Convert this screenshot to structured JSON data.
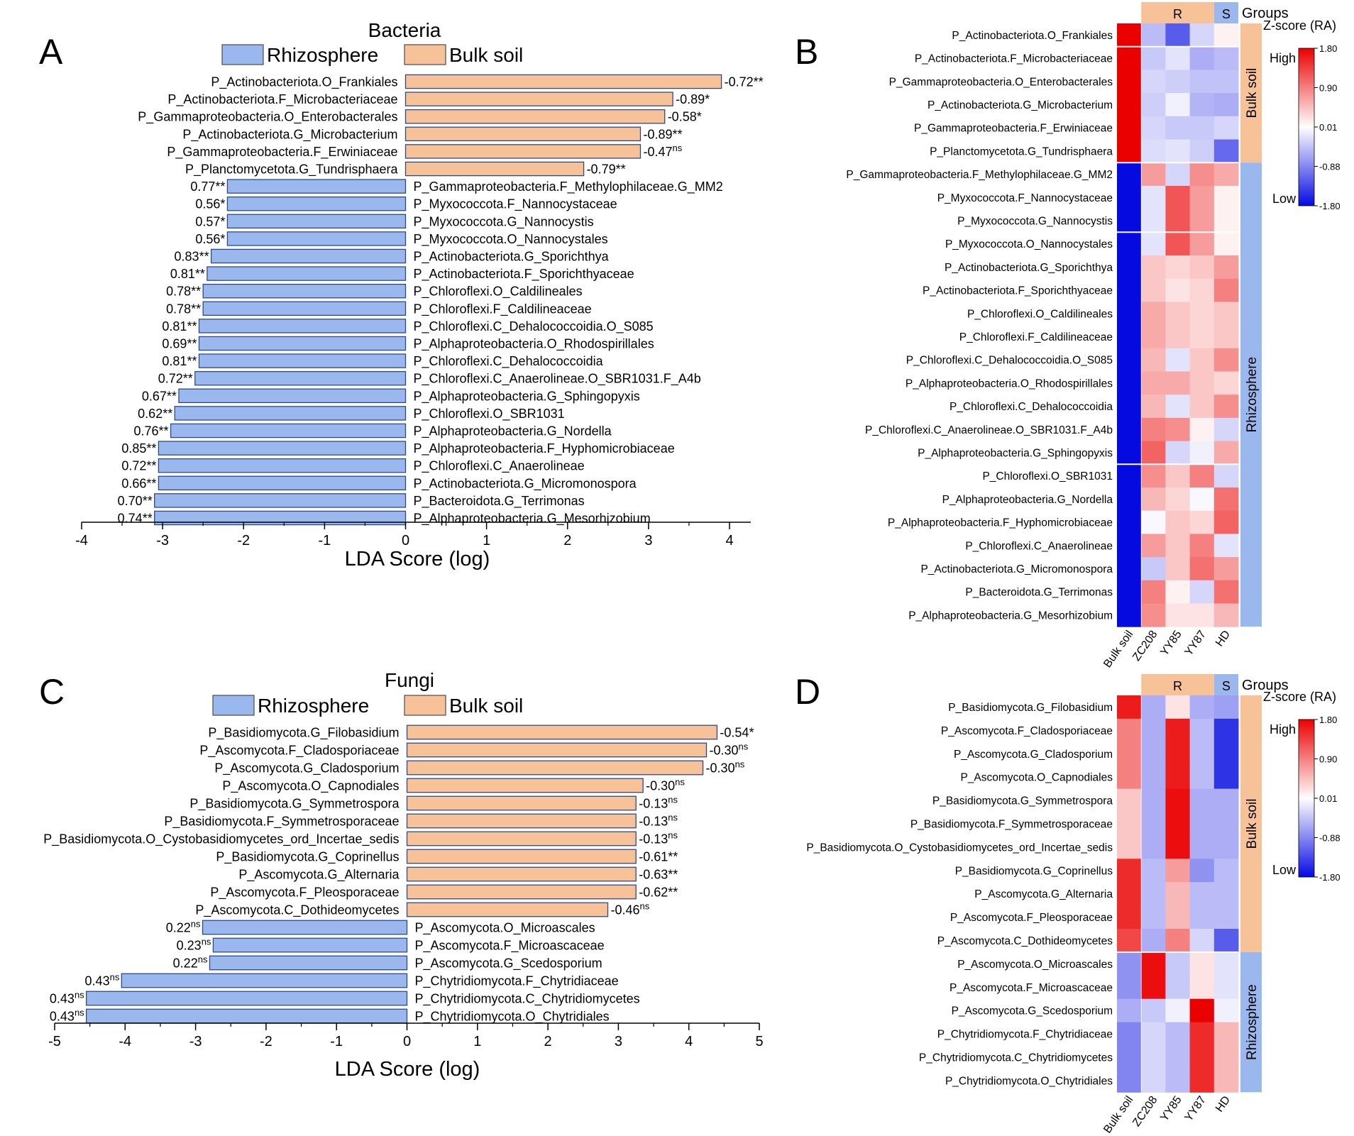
{
  "chart_data": [
    {
      "panel": "A",
      "type": "bar",
      "orientation": "horizontal",
      "title": "Bacteria",
      "xlabel": "LDA Score (log)",
      "xlim": [
        -4,
        4
      ],
      "xticks": [
        -4,
        -3,
        -2,
        -1,
        0,
        1,
        2,
        3,
        4
      ],
      "legend": [
        {
          "name": "Rhizosphere",
          "color": "#9bb8ee"
        },
        {
          "name": "Bulk soil",
          "color": "#f8c299"
        }
      ],
      "bars": [
        {
          "taxon": "P_Actinobacteriota.O_Frankiales",
          "value": 3.9,
          "group": "Bulk soil",
          "r": "-0.72",
          "sig": "**"
        },
        {
          "taxon": "P_Actinobacteriota.F_Microbacteriaceae",
          "value": 3.3,
          "group": "Bulk soil",
          "r": "-0.89",
          "sig": "*"
        },
        {
          "taxon": "P_Gammaproteobacteria.O_Enterobacterales",
          "value": 3.2,
          "group": "Bulk soil",
          "r": "-0.58",
          "sig": "*"
        },
        {
          "taxon": "P_Actinobacteriota.G_Microbacterium",
          "value": 2.9,
          "group": "Bulk soil",
          "r": "-0.89",
          "sig": "**"
        },
        {
          "taxon": "P_Gammaproteobacteria.F_Erwiniaceae",
          "value": 2.9,
          "group": "Bulk soil",
          "r": "-0.47",
          "sig": "ns"
        },
        {
          "taxon": "P_Planctomycetota.G_Tundrisphaera",
          "value": 2.2,
          "group": "Bulk soil",
          "r": "-0.79",
          "sig": "**"
        },
        {
          "taxon": "P_Gammaproteobacteria.F_Methylophilaceae.G_MM2",
          "value": -2.2,
          "group": "Rhizosphere",
          "r": "0.77",
          "sig": "**"
        },
        {
          "taxon": "P_Myxococcota.F_Nannocystaceae",
          "value": -2.2,
          "group": "Rhizosphere",
          "r": "0.56",
          "sig": "*"
        },
        {
          "taxon": "P_Myxococcota.G_Nannocystis",
          "value": -2.2,
          "group": "Rhizosphere",
          "r": "0.57",
          "sig": "*"
        },
        {
          "taxon": "P_Myxococcota.O_Nannocystales",
          "value": -2.2,
          "group": "Rhizosphere",
          "r": "0.56",
          "sig": "*"
        },
        {
          "taxon": "P_Actinobacteriota.G_Sporichthya",
          "value": -2.4,
          "group": "Rhizosphere",
          "r": "0.83",
          "sig": "**"
        },
        {
          "taxon": "P_Actinobacteriota.F_Sporichthyaceae",
          "value": -2.45,
          "group": "Rhizosphere",
          "r": "0.81",
          "sig": "**"
        },
        {
          "taxon": "P_Chloroflexi.O_Caldilineales",
          "value": -2.5,
          "group": "Rhizosphere",
          "r": "0.78",
          "sig": "**"
        },
        {
          "taxon": "P_Chloroflexi.F_Caldilineaceae",
          "value": -2.5,
          "group": "Rhizosphere",
          "r": "0.78",
          "sig": "**"
        },
        {
          "taxon": "P_Chloroflexi.C_Dehalococcoidia.O_S085",
          "value": -2.55,
          "group": "Rhizosphere",
          "r": "0.81",
          "sig": "**"
        },
        {
          "taxon": "P_Alphaproteobacteria.O_Rhodospirillales",
          "value": -2.55,
          "group": "Rhizosphere",
          "r": "0.69",
          "sig": "**"
        },
        {
          "taxon": "P_Chloroflexi.C_Dehalococcoidia",
          "value": -2.55,
          "group": "Rhizosphere",
          "r": "0.81",
          "sig": "**"
        },
        {
          "taxon": "P_Chloroflexi.C_Anaerolineae.O_SBR1031.F_A4b",
          "value": -2.6,
          "group": "Rhizosphere",
          "r": "0.72",
          "sig": "**"
        },
        {
          "taxon": "P_Alphaproteobacteria.G_Sphingopyxis",
          "value": -2.8,
          "group": "Rhizosphere",
          "r": "0.67",
          "sig": "**"
        },
        {
          "taxon": "P_Chloroflexi.O_SBR1031",
          "value": -2.85,
          "group": "Rhizosphere",
          "r": "0.62",
          "sig": "**"
        },
        {
          "taxon": "P_Alphaproteobacteria.G_Nordella",
          "value": -2.9,
          "group": "Rhizosphere",
          "r": "0.76",
          "sig": "**"
        },
        {
          "taxon": "P_Alphaproteobacteria.F_Hyphomicrobiaceae",
          "value": -3.05,
          "group": "Rhizosphere",
          "r": "0.85",
          "sig": "**"
        },
        {
          "taxon": "P_Chloroflexi.C_Anaerolineae",
          "value": -3.05,
          "group": "Rhizosphere",
          "r": "0.72",
          "sig": "**"
        },
        {
          "taxon": "P_Actinobacteriota.G_Micromonospora",
          "value": -3.05,
          "group": "Rhizosphere",
          "r": "0.66",
          "sig": "**"
        },
        {
          "taxon": "P_Bacteroidota.G_Terrimonas",
          "value": -3.1,
          "group": "Rhizosphere",
          "r": "0.70",
          "sig": "**"
        },
        {
          "taxon": "P_Alphaproteobacteria.G_Mesorhizobium",
          "value": -3.1,
          "group": "Rhizosphere",
          "r": "0.74",
          "sig": "**"
        }
      ]
    },
    {
      "panel": "B",
      "type": "heatmap",
      "legend_title": "Z-score (RA)",
      "legend_high": "High",
      "legend_low": "Low",
      "scale_ticks": [
        "1.80",
        "0.90",
        "0.01",
        "-0.88",
        "-1.80"
      ],
      "scale_values": [
        1.8,
        0.9,
        0.01,
        -0.88,
        -1.8
      ],
      "columns": [
        "Bulk soil",
        "ZC208",
        "YY85",
        "YY87",
        "HD"
      ],
      "groups_label": "Groups",
      "column_groups": [
        {
          "name": "R",
          "span": [
            1,
            3
          ],
          "color": "#f8c299"
        },
        {
          "name": "S",
          "span": [
            4,
            4
          ],
          "color": "#9bb8ee"
        }
      ],
      "row_groups": [
        {
          "name": "Bulk soil",
          "rows": 6,
          "color": "#f8c299"
        },
        {
          "name": "Rhizosphere",
          "rows": 20,
          "color": "#9bb8ee"
        }
      ],
      "row_breaks": [
        1,
        6,
        9,
        19
      ],
      "rows": [
        {
          "taxon": "P_Actinobacteriota.O_Frankiales",
          "z": [
            1.8,
            -0.5,
            -1.2,
            -0.3,
            0.1
          ]
        },
        {
          "taxon": "P_Actinobacteriota.F_Microbacteriaceae",
          "z": [
            1.8,
            -0.4,
            -0.2,
            -0.6,
            -0.5
          ]
        },
        {
          "taxon": "P_Gammaproteobacteria.O_Enterobacterales",
          "z": [
            1.8,
            -0.3,
            -0.35,
            -0.45,
            -0.45
          ]
        },
        {
          "taxon": "P_Actinobacteriota.G_Microbacterium",
          "z": [
            1.8,
            -0.35,
            -0.1,
            -0.55,
            -0.6
          ]
        },
        {
          "taxon": "P_Gammaproteobacteria.F_Erwiniaceae",
          "z": [
            1.8,
            -0.3,
            -0.4,
            -0.4,
            -0.3
          ]
        },
        {
          "taxon": "P_Planctomycetota.G_Tundrisphaera",
          "z": [
            1.8,
            -0.25,
            -0.2,
            -0.35,
            -1.1
          ]
        },
        {
          "taxon": "P_Gammaproteobacteria.F_Methylophilaceae.G_MM2",
          "z": [
            -1.8,
            0.7,
            -0.3,
            0.8,
            0.6
          ]
        },
        {
          "taxon": "P_Myxococcota.F_Nannocystaceae",
          "z": [
            -1.8,
            -0.2,
            1.2,
            0.7,
            0.1
          ]
        },
        {
          "taxon": "P_Myxococcota.G_Nannocystis",
          "z": [
            -1.8,
            -0.2,
            1.2,
            0.7,
            0.1
          ]
        },
        {
          "taxon": "P_Myxococcota.O_Nannocystales",
          "z": [
            -1.8,
            -0.2,
            1.2,
            0.7,
            0.1
          ]
        },
        {
          "taxon": "P_Actinobacteriota.G_Sporichthya",
          "z": [
            -1.8,
            0.4,
            0.3,
            0.4,
            0.7
          ]
        },
        {
          "taxon": "P_Actinobacteriota.F_Sporichthyaceae",
          "z": [
            -1.8,
            0.4,
            0.2,
            0.3,
            0.9
          ]
        },
        {
          "taxon": "P_Chloroflexi.O_Caldilineales",
          "z": [
            -1.8,
            0.6,
            0.4,
            0.3,
            0.4
          ]
        },
        {
          "taxon": "P_Chloroflexi.F_Caldilineaceae",
          "z": [
            -1.8,
            0.6,
            0.4,
            0.3,
            0.4
          ]
        },
        {
          "taxon": "P_Chloroflexi.C_Dehalococcoidia.O_S085",
          "z": [
            -1.8,
            0.5,
            -0.2,
            0.4,
            0.8
          ]
        },
        {
          "taxon": "P_Alphaproteobacteria.O_Rhodospirillales",
          "z": [
            -1.8,
            0.6,
            0.6,
            0.4,
            0.3
          ]
        },
        {
          "taxon": "P_Chloroflexi.C_Dehalococcoidia",
          "z": [
            -1.8,
            0.5,
            -0.2,
            0.4,
            0.8
          ]
        },
        {
          "taxon": "P_Chloroflexi.C_Anaerolineae.O_SBR1031.F_A4b",
          "z": [
            -1.8,
            0.9,
            0.8,
            0.1,
            -0.3
          ]
        },
        {
          "taxon": "P_Alphaproteobacteria.G_Sphingopyxis",
          "z": [
            -1.8,
            1.1,
            -0.3,
            -0.1,
            0.6
          ]
        },
        {
          "taxon": "P_Chloroflexi.O_SBR1031",
          "z": [
            -1.8,
            0.8,
            0.4,
            0.9,
            -0.3
          ]
        },
        {
          "taxon": "P_Alphaproteobacteria.G_Nordella",
          "z": [
            -1.8,
            0.5,
            0.3,
            -0.05,
            1.0
          ]
        },
        {
          "taxon": "P_Alphaproteobacteria.F_Hyphomicrobiaceae",
          "z": [
            -1.8,
            -0.05,
            0.4,
            0.3,
            1.1
          ]
        },
        {
          "taxon": "P_Chloroflexi.C_Anaerolineae",
          "z": [
            -1.8,
            0.7,
            0.4,
            0.9,
            -0.2
          ]
        },
        {
          "taxon": "P_Actinobacteriota.G_Micromonospora",
          "z": [
            -1.8,
            -0.4,
            0.4,
            1.0,
            0.7
          ]
        },
        {
          "taxon": "P_Bacteroidota.G_Terrimonas",
          "z": [
            -1.8,
            0.9,
            0.1,
            -0.3,
            1.0
          ]
        },
        {
          "taxon": "P_Alphaproteobacteria.G_Mesorhizobium",
          "z": [
            -1.8,
            0.8,
            0.2,
            0.2,
            0.5
          ]
        }
      ]
    },
    {
      "panel": "C",
      "type": "bar",
      "orientation": "horizontal",
      "title": "Fungi",
      "xlabel": "LDA Score (log)",
      "xlim": [
        -5,
        5
      ],
      "xticks": [
        -5,
        -4,
        -3,
        -2,
        -1,
        0,
        1,
        2,
        3,
        4,
        5
      ],
      "legend": [
        {
          "name": "Rhizosphere",
          "color": "#9bb8ee"
        },
        {
          "name": "Bulk soil",
          "color": "#f8c299"
        }
      ],
      "bars": [
        {
          "taxon": "P_Basidiomycota.G_Filobasidium",
          "value": 4.4,
          "group": "Bulk soil",
          "r": "-0.54",
          "sig": "*"
        },
        {
          "taxon": "P_Ascomycota.F_Cladosporiaceae",
          "value": 4.25,
          "group": "Bulk soil",
          "r": "-0.30",
          "sig": "ns"
        },
        {
          "taxon": "P_Ascomycota.G_Cladosporium",
          "value": 4.2,
          "group": "Bulk soil",
          "r": "-0.30",
          "sig": "ns"
        },
        {
          "taxon": "P_Ascomycota.O_Capnodiales",
          "value": 3.35,
          "group": "Bulk soil",
          "r": "-0.30",
          "sig": "ns"
        },
        {
          "taxon": "P_Basidiomycota.G_Symmetrospora",
          "value": 3.25,
          "group": "Bulk soil",
          "r": "-0.13",
          "sig": "ns"
        },
        {
          "taxon": "P_Basidiomycota.F_Symmetrosporaceae",
          "value": 3.25,
          "group": "Bulk soil",
          "r": "-0.13",
          "sig": "ns"
        },
        {
          "taxon": "P_Basidiomycota.O_Cystobasidiomycetes_ord_Incertae_sedis",
          "value": 3.25,
          "group": "Bulk soil",
          "r": "-0.13",
          "sig": "ns"
        },
        {
          "taxon": "P_Basidiomycota.G_Coprinellus",
          "value": 3.25,
          "group": "Bulk soil",
          "r": "-0.61",
          "sig": "**"
        },
        {
          "taxon": "P_Ascomycota.G_Alternaria",
          "value": 3.25,
          "group": "Bulk soil",
          "r": "-0.63",
          "sig": "**"
        },
        {
          "taxon": "P_Ascomycota.F_Pleosporaceae",
          "value": 3.25,
          "group": "Bulk soil",
          "r": "-0.62",
          "sig": "**"
        },
        {
          "taxon": "P_Ascomycota.C_Dothideomycetes",
          "value": 2.85,
          "group": "Bulk soil",
          "r": "-0.46",
          "sig": "ns"
        },
        {
          "taxon": "P_Ascomycota.O_Microascales",
          "value": -2.9,
          "group": "Rhizosphere",
          "r": "0.22",
          "sig": "ns"
        },
        {
          "taxon": "P_Ascomycota.F_Microascaceae",
          "value": -2.75,
          "group": "Rhizosphere",
          "r": "0.23",
          "sig": "ns"
        },
        {
          "taxon": "P_Ascomycota.G_Scedosporium",
          "value": -2.8,
          "group": "Rhizosphere",
          "r": "0.22",
          "sig": "ns"
        },
        {
          "taxon": "P_Chytridiomycota.F_Chytridiaceae",
          "value": -4.05,
          "group": "Rhizosphere",
          "r": "0.43",
          "sig": "ns"
        },
        {
          "taxon": "P_Chytridiomycota.C_Chytridiomycetes",
          "value": -4.55,
          "group": "Rhizosphere",
          "r": "0.43",
          "sig": "ns"
        },
        {
          "taxon": "P_Chytridiomycota.O_Chytridiales",
          "value": -4.55,
          "group": "Rhizosphere",
          "r": "0.43",
          "sig": "ns"
        }
      ]
    },
    {
      "panel": "D",
      "type": "heatmap",
      "legend_title": "Z-score (RA)",
      "legend_high": "High",
      "legend_low": "Low",
      "scale_ticks": [
        "1.80",
        "0.90",
        "0.01",
        "-0.88",
        "-1.80"
      ],
      "scale_values": [
        1.8,
        0.9,
        0.01,
        -0.88,
        -1.8
      ],
      "columns": [
        "Bulk soil",
        "ZC208",
        "YY85",
        "YY87",
        "HD"
      ],
      "groups_label": "Groups",
      "column_groups": [
        {
          "name": "R",
          "span": [
            1,
            3
          ],
          "color": "#f8c299"
        },
        {
          "name": "S",
          "span": [
            4,
            4
          ],
          "color": "#9bb8ee"
        }
      ],
      "row_groups": [
        {
          "name": "Bulk soil",
          "rows": 11,
          "color": "#f8c299"
        },
        {
          "name": "Rhizosphere",
          "rows": 6,
          "color": "#9bb8ee"
        }
      ],
      "row_breaks": [
        11
      ],
      "rows": [
        {
          "taxon": "P_Basidiomycota.G_Filobasidium",
          "z": [
            1.6,
            -0.6,
            0.2,
            -0.6,
            -0.7
          ]
        },
        {
          "taxon": "P_Ascomycota.F_Cladosporiaceae",
          "z": [
            0.9,
            -0.6,
            1.6,
            -0.5,
            -1.5
          ]
        },
        {
          "taxon": "P_Ascomycota.G_Cladosporium",
          "z": [
            0.9,
            -0.6,
            1.6,
            -0.5,
            -1.5
          ]
        },
        {
          "taxon": "P_Ascomycota.O_Capnodiales",
          "z": [
            0.9,
            -0.6,
            1.6,
            -0.5,
            -1.5
          ]
        },
        {
          "taxon": "P_Basidiomycota.G_Symmetrospora",
          "z": [
            0.4,
            -0.6,
            1.7,
            -0.6,
            -0.6
          ]
        },
        {
          "taxon": "P_Basidiomycota.F_Symmetrosporaceae",
          "z": [
            0.4,
            -0.6,
            1.7,
            -0.6,
            -0.6
          ]
        },
        {
          "taxon": "P_Basidiomycota.O_Cystobasidiomycetes_ord_Incertae_sedis",
          "z": [
            0.4,
            -0.6,
            1.7,
            -0.6,
            -0.6
          ]
        },
        {
          "taxon": "P_Basidiomycota.G_Coprinellus",
          "z": [
            1.5,
            -0.5,
            0.7,
            -0.8,
            -0.5
          ]
        },
        {
          "taxon": "P_Ascomycota.G_Alternaria",
          "z": [
            1.5,
            -0.5,
            0.5,
            -0.5,
            -0.5
          ]
        },
        {
          "taxon": "P_Ascomycota.F_Pleosporaceae",
          "z": [
            1.5,
            -0.5,
            0.5,
            -0.5,
            -0.5
          ]
        },
        {
          "taxon": "P_Ascomycota.C_Dothideomycetes",
          "z": [
            1.3,
            -0.6,
            0.9,
            -0.3,
            -1.2
          ]
        },
        {
          "taxon": "P_Ascomycota.O_Microascales",
          "z": [
            -0.8,
            1.7,
            -0.4,
            0.2,
            -0.2
          ]
        },
        {
          "taxon": "P_Ascomycota.F_Microascaceae",
          "z": [
            -0.8,
            1.7,
            -0.4,
            0.2,
            -0.2
          ]
        },
        {
          "taxon": "P_Ascomycota.G_Scedosporium",
          "z": [
            -0.6,
            -0.4,
            -0.1,
            1.8,
            -0.1
          ]
        },
        {
          "taxon": "P_Chytridiomycota.F_Chytridiaceae",
          "z": [
            -0.9,
            -0.3,
            -0.5,
            1.5,
            0.5
          ]
        },
        {
          "taxon": "P_Chytridiomycota.C_Chytridiomycetes",
          "z": [
            -0.9,
            -0.3,
            -0.5,
            1.5,
            0.5
          ]
        },
        {
          "taxon": "P_Chytridiomycota.O_Chytridiales",
          "z": [
            -0.9,
            -0.3,
            -0.5,
            1.5,
            0.5
          ]
        }
      ]
    }
  ]
}
